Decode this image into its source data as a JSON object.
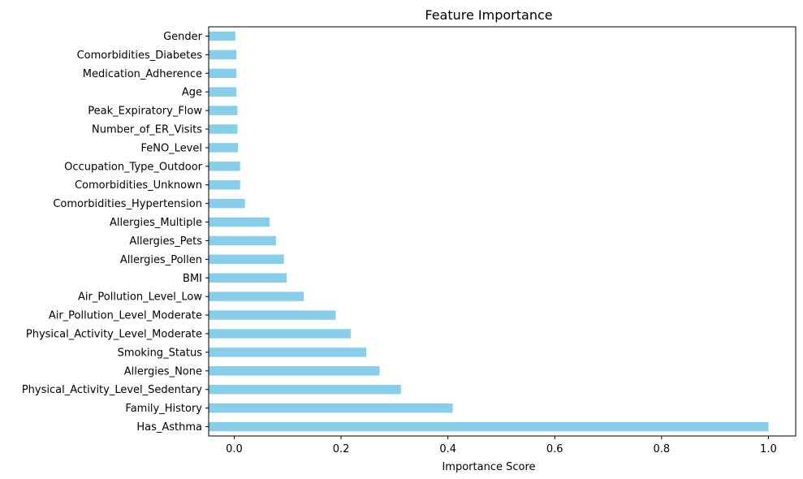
{
  "chart_data": {
    "type": "bar",
    "orientation": "horizontal",
    "title": "Feature Importance",
    "xlabel": "Importance Score",
    "ylabel": "",
    "xlim": [
      0,
      1.0
    ],
    "x_ticks": [
      "0.0",
      "0.2",
      "0.4",
      "0.6",
      "0.8",
      "1.0"
    ],
    "bar_color": "#87CEEB",
    "grid": false,
    "legend": "none",
    "categories": [
      "Has_Asthma",
      "Family_History",
      "Physical_Activity_Level_Sedentary",
      "Allergies_None",
      "Smoking_Status",
      "Physical_Activity_Level_Moderate",
      "Air_Pollution_Level_Moderate",
      "Air_Pollution_Level_Low",
      "BMI",
      "Allergies_Pollen",
      "Allergies_Pets",
      "Allergies_Multiple",
      "Comorbidities_Hypertension",
      "Comorbidities_Unknown",
      "Occupation_Type_Outdoor",
      "FeNO_Level",
      "Number_of_ER_Visits",
      "Peak_Expiratory_Flow",
      "Age",
      "Medication_Adherence",
      "Comorbidities_Diabetes",
      "Gender"
    ],
    "values": [
      1.0,
      0.409,
      0.312,
      0.272,
      0.247,
      0.218,
      0.19,
      0.13,
      0.098,
      0.093,
      0.078,
      0.066,
      0.02,
      0.011,
      0.011,
      0.007,
      0.006,
      0.006,
      0.004,
      0.004,
      0.004,
      0.002
    ]
  }
}
